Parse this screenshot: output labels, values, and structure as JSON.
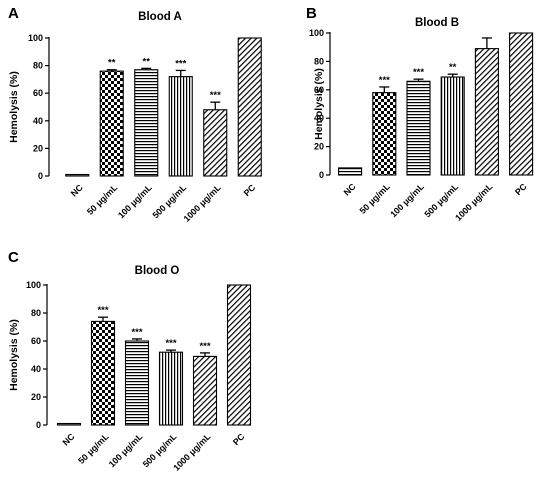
{
  "chart_data": [
    {
      "panel": "A",
      "title": "Blood A",
      "type": "bar",
      "ylabel": "Hemolysis (%)",
      "ylim": [
        0,
        100
      ],
      "yticks": [
        0,
        20,
        40,
        60,
        80,
        100
      ],
      "categories": [
        "NC",
        "50 μg/mL",
        "100 μg/mL",
        "500 μg/mL",
        "1000 μg/mL",
        "PC"
      ],
      "values": [
        0.5,
        76,
        77,
        72,
        48,
        100
      ],
      "errors": [
        0,
        1,
        1,
        4.5,
        5.5,
        0
      ],
      "significance": [
        "",
        "**",
        "**",
        "***",
        "***",
        ""
      ],
      "patterns": [
        "horiz",
        "checker",
        "horiz",
        "vert",
        "diag",
        "diag"
      ],
      "grid": false
    },
    {
      "panel": "B",
      "title": "Blood B",
      "type": "bar",
      "ylabel": "Hemolysis (%)",
      "ylim": [
        0,
        100
      ],
      "yticks": [
        0,
        20,
        40,
        60,
        80,
        100
      ],
      "categories": [
        "NC",
        "50 μg/mL",
        "100 μg/mL",
        "500 μg/mL",
        "1000 μg/mL",
        "PC"
      ],
      "values": [
        5,
        58,
        66,
        69,
        89,
        100
      ],
      "errors": [
        0,
        4,
        1.5,
        2,
        7.5,
        0
      ],
      "significance": [
        "",
        "***",
        "***",
        "**",
        "",
        ""
      ],
      "patterns": [
        "horiz",
        "checker",
        "horiz",
        "vert",
        "diag",
        "diag"
      ],
      "grid": false
    },
    {
      "panel": "C",
      "title": "Blood O",
      "type": "bar",
      "ylabel": "Hemolysis (%)",
      "ylim": [
        0,
        100
      ],
      "yticks": [
        0,
        20,
        40,
        60,
        80,
        100
      ],
      "categories": [
        "NC",
        "50 μg/mL",
        "100 μg/mL",
        "500 μg/mL",
        "1000 μg/mL",
        "PC"
      ],
      "values": [
        0.5,
        74,
        60,
        52,
        49,
        100
      ],
      "errors": [
        0,
        3,
        1.5,
        1.5,
        2.5,
        0
      ],
      "significance": [
        "",
        "***",
        "***",
        "***",
        "***",
        ""
      ],
      "patterns": [
        "horiz",
        "checker",
        "horiz",
        "vert",
        "diag",
        "diag"
      ],
      "grid": false
    }
  ]
}
